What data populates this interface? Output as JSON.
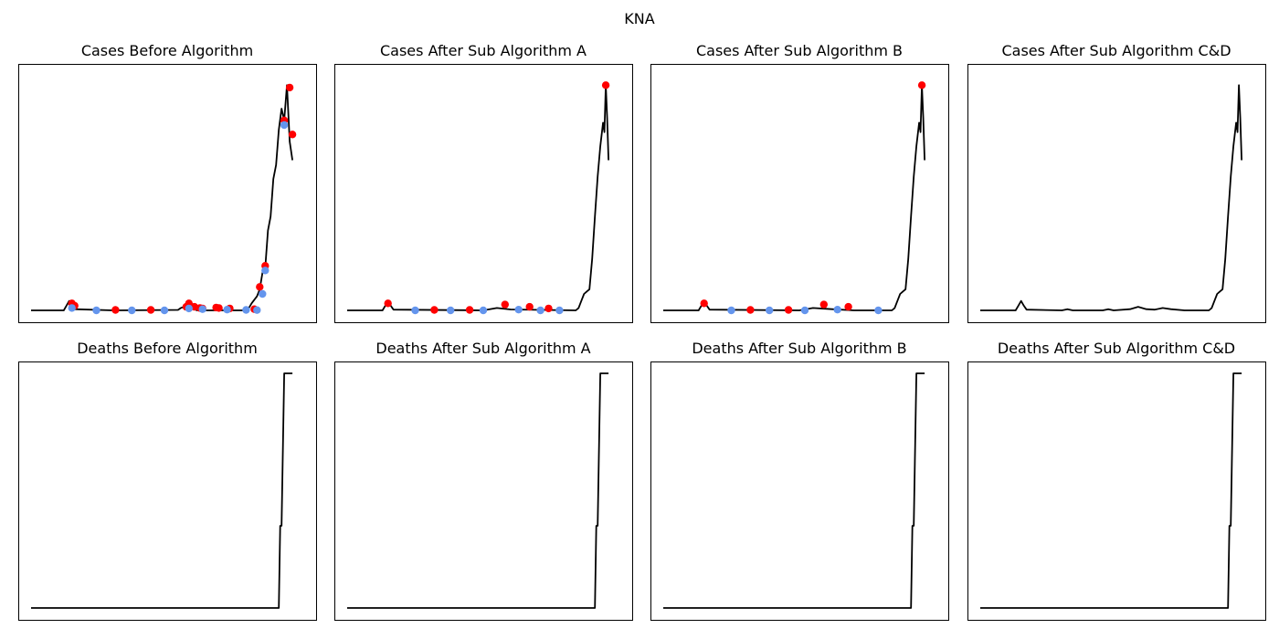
{
  "figure": {
    "title": "KNA"
  },
  "colors": {
    "line": "#000000",
    "outlier_red": "#ff0000",
    "outlier_blue": "#6495ed",
    "frame": "#000000"
  },
  "chart_data": [
    {
      "type": "line",
      "title": "Cases Before Algorithm",
      "xlim": [
        0,
        100
      ],
      "ylim": [
        0,
        100
      ],
      "series": [
        {
          "values": [
            [
              0,
              0
            ],
            [
              12,
              0
            ],
            [
              13,
              2
            ],
            [
              14,
              4
            ],
            [
              15,
              2
            ],
            [
              16,
              0.5
            ],
            [
              30,
              0
            ],
            [
              54,
              0.2
            ],
            [
              55,
              1
            ],
            [
              57,
              2
            ],
            [
              59,
              1
            ],
            [
              61,
              0
            ],
            [
              78,
              0
            ],
            [
              80,
              1
            ],
            [
              81,
              3
            ],
            [
              83,
              6
            ],
            [
              84,
              9
            ],
            [
              85,
              16
            ],
            [
              86,
              18
            ],
            [
              87,
              34
            ],
            [
              88,
              40
            ],
            [
              89,
              56
            ],
            [
              90,
              62
            ],
            [
              91,
              77
            ],
            [
              92,
              86
            ],
            [
              93,
              81
            ],
            [
              94,
              96
            ],
            [
              95,
              72
            ],
            [
              96,
              64
            ]
          ]
        }
      ],
      "markers": [
        {
          "color": "red",
          "points": [
            [
              15,
              3
            ],
            [
              16,
              2
            ],
            [
              31,
              0.2
            ],
            [
              44,
              0.2
            ],
            [
              57,
              1.5
            ],
            [
              58,
              3
            ],
            [
              60,
              1.5
            ],
            [
              62,
              1
            ],
            [
              63,
              0.8
            ],
            [
              68,
              1.2
            ],
            [
              69,
              1
            ],
            [
              73,
              0.8
            ],
            [
              82,
              0.5
            ],
            [
              84,
              10
            ],
            [
              86,
              19
            ],
            [
              93,
              81
            ],
            [
              96,
              75
            ],
            [
              95,
              95
            ]
          ]
        },
        {
          "color": "blue",
          "points": [
            [
              15,
              1
            ],
            [
              24,
              0
            ],
            [
              37,
              0
            ],
            [
              49,
              0
            ],
            [
              58,
              0.8
            ],
            [
              63,
              0.5
            ],
            [
              72,
              0.3
            ],
            [
              79,
              0.2
            ],
            [
              83,
              0.1
            ],
            [
              85,
              7
            ],
            [
              86,
              17
            ],
            [
              93,
              79
            ]
          ]
        }
      ]
    },
    {
      "type": "line",
      "title": "Cases After Sub Algorithm A",
      "xlim": [
        0,
        100
      ],
      "ylim": [
        0,
        100
      ],
      "series": [
        {
          "values": [
            [
              0,
              0
            ],
            [
              13,
              0
            ],
            [
              14,
              2
            ],
            [
              15,
              4
            ],
            [
              16,
              2
            ],
            [
              17,
              0.3
            ],
            [
              50,
              0
            ],
            [
              55,
              1
            ],
            [
              60,
              0.4
            ],
            [
              84,
              0
            ],
            [
              85,
              1
            ],
            [
              86,
              4
            ],
            [
              87,
              7
            ],
            [
              88,
              8
            ],
            [
              89,
              9
            ],
            [
              90,
              22
            ],
            [
              91,
              40
            ],
            [
              92,
              57
            ],
            [
              93,
              70
            ],
            [
              94,
              80
            ],
            [
              94.5,
              76
            ],
            [
              95,
              96
            ],
            [
              95.5,
              82
            ],
            [
              96,
              64
            ]
          ]
        }
      ],
      "markers": [
        {
          "color": "red",
          "points": [
            [
              15,
              3
            ],
            [
              32,
              0.2
            ],
            [
              45,
              0.2
            ],
            [
              58,
              2.5
            ],
            [
              67,
              1.5
            ],
            [
              74,
              0.8
            ],
            [
              95,
              96
            ]
          ]
        },
        {
          "color": "blue",
          "points": [
            [
              25,
              0
            ],
            [
              38,
              0
            ],
            [
              50,
              0
            ],
            [
              63,
              0.3
            ],
            [
              71,
              0
            ],
            [
              78,
              0
            ]
          ]
        }
      ]
    },
    {
      "type": "line",
      "title": "Cases After Sub Algorithm B",
      "xlim": [
        0,
        100
      ],
      "ylim": [
        0,
        100
      ],
      "series": [
        {
          "values": [
            [
              0,
              0
            ],
            [
              13,
              0
            ],
            [
              14,
              2
            ],
            [
              15,
              4
            ],
            [
              16,
              2
            ],
            [
              17,
              0.3
            ],
            [
              50,
              0
            ],
            [
              55,
              1
            ],
            [
              62,
              0.5
            ],
            [
              70,
              0
            ],
            [
              84,
              0
            ],
            [
              85,
              1
            ],
            [
              86,
              4
            ],
            [
              87,
              7
            ],
            [
              88,
              8
            ],
            [
              89,
              9
            ],
            [
              90,
              22
            ],
            [
              91,
              40
            ],
            [
              92,
              57
            ],
            [
              93,
              70
            ],
            [
              94,
              80
            ],
            [
              94.5,
              76
            ],
            [
              95,
              96
            ],
            [
              95.5,
              82
            ],
            [
              96,
              64
            ]
          ]
        }
      ],
      "markers": [
        {
          "color": "red",
          "points": [
            [
              15,
              3
            ],
            [
              32,
              0.2
            ],
            [
              46,
              0.2
            ],
            [
              59,
              2.5
            ],
            [
              68,
              1.5
            ],
            [
              95,
              96
            ]
          ]
        },
        {
          "color": "blue",
          "points": [
            [
              25,
              0
            ],
            [
              39,
              0
            ],
            [
              52,
              0
            ],
            [
              64,
              0.3
            ],
            [
              79,
              0
            ]
          ]
        }
      ]
    },
    {
      "type": "line",
      "title": "Cases After Sub Algorithm C&D",
      "xlim": [
        0,
        100
      ],
      "ylim": [
        0,
        100
      ],
      "series": [
        {
          "values": [
            [
              0,
              0
            ],
            [
              13,
              0
            ],
            [
              14,
              2
            ],
            [
              15,
              4
            ],
            [
              16,
              2
            ],
            [
              17,
              0.3
            ],
            [
              30,
              0
            ],
            [
              32,
              0.5
            ],
            [
              34,
              0
            ],
            [
              45,
              0
            ],
            [
              47,
              0.5
            ],
            [
              49,
              0
            ],
            [
              55,
              0.5
            ],
            [
              58,
              1.5
            ],
            [
              61,
              0.5
            ],
            [
              64,
              0.3
            ],
            [
              67,
              1
            ],
            [
              70,
              0.5
            ],
            [
              75,
              0
            ],
            [
              84,
              0
            ],
            [
              85,
              1
            ],
            [
              86,
              4
            ],
            [
              87,
              7
            ],
            [
              88,
              8
            ],
            [
              89,
              9
            ],
            [
              90,
              22
            ],
            [
              91,
              40
            ],
            [
              92,
              57
            ],
            [
              93,
              70
            ],
            [
              94,
              80
            ],
            [
              94.5,
              76
            ],
            [
              95,
              96
            ],
            [
              95.5,
              82
            ],
            [
              96,
              64
            ]
          ]
        }
      ],
      "markers": []
    },
    {
      "type": "line",
      "title": "Deaths Before Algorithm",
      "xlim": [
        0,
        100
      ],
      "ylim": [
        0,
        100
      ],
      "series": [
        {
          "values": [
            [
              0,
              0
            ],
            [
              91,
              0
            ],
            [
              91.5,
              35
            ],
            [
              92,
              35
            ],
            [
              93,
              100
            ],
            [
              96,
              100
            ]
          ]
        }
      ],
      "markers": []
    },
    {
      "type": "line",
      "title": "Deaths After Sub Algorithm A",
      "xlim": [
        0,
        100
      ],
      "ylim": [
        0,
        100
      ],
      "series": [
        {
          "values": [
            [
              0,
              0
            ],
            [
              91,
              0
            ],
            [
              91.5,
              35
            ],
            [
              92,
              35
            ],
            [
              93,
              100
            ],
            [
              96,
              100
            ]
          ]
        }
      ],
      "markers": []
    },
    {
      "type": "line",
      "title": "Deaths After Sub Algorithm B",
      "xlim": [
        0,
        100
      ],
      "ylim": [
        0,
        100
      ],
      "series": [
        {
          "values": [
            [
              0,
              0
            ],
            [
              91,
              0
            ],
            [
              91.5,
              35
            ],
            [
              92,
              35
            ],
            [
              93,
              100
            ],
            [
              96,
              100
            ]
          ]
        }
      ],
      "markers": []
    },
    {
      "type": "line",
      "title": "Deaths After Sub Algorithm C&D",
      "xlim": [
        0,
        100
      ],
      "ylim": [
        0,
        100
      ],
      "series": [
        {
          "values": [
            [
              0,
              0
            ],
            [
              91,
              0
            ],
            [
              91.5,
              35
            ],
            [
              92,
              35
            ],
            [
              93,
              100
            ],
            [
              96,
              100
            ]
          ]
        }
      ],
      "markers": []
    }
  ]
}
